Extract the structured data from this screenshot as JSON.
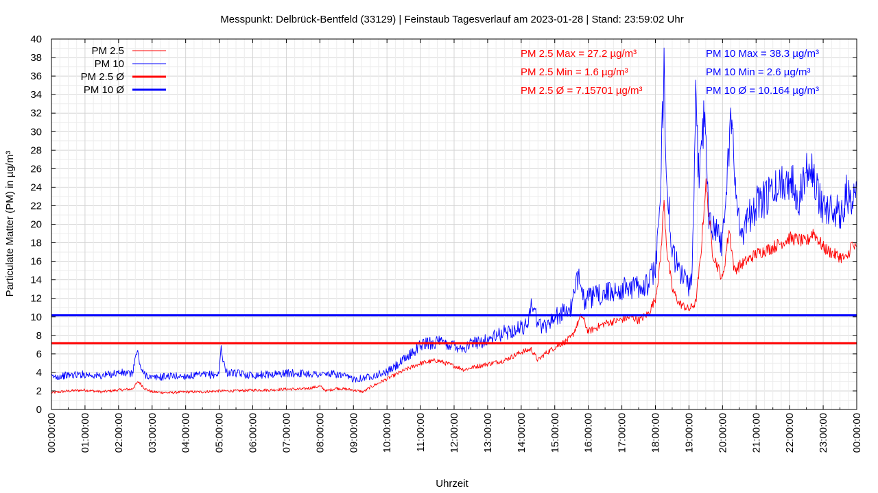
{
  "chart_data": {
    "type": "line",
    "title": "Messpunkt: Delbrück-Bentfeld (33129) | Feinstaub Tagesverlauf am 2023-01-28 | Stand: 23:59:02 Uhr",
    "xlabel": "Uhrzeit",
    "ylabel": "Particulate Matter (PM) in µg/m³",
    "ylim": [
      0,
      40
    ],
    "grid": true,
    "legend_position": "top-left",
    "x_ticks": [
      "00:00:00",
      "01:00:00",
      "02:00:00",
      "03:00:00",
      "04:00:00",
      "05:00:00",
      "06:00:00",
      "07:00:00",
      "08:00:00",
      "09:00:00",
      "10:00:00",
      "11:00:00",
      "12:00:00",
      "13:00:00",
      "14:00:00",
      "15:00:00",
      "16:00:00",
      "17:00:00",
      "18:00:00",
      "19:00:00",
      "20:00:00",
      "21:00:00",
      "22:00:00",
      "23:00:00",
      "00:00:00"
    ],
    "y_ticks": [
      0,
      2,
      4,
      6,
      8,
      10,
      12,
      14,
      16,
      18,
      20,
      22,
      24,
      26,
      28,
      30,
      32,
      34,
      36,
      38,
      40
    ],
    "series": [
      {
        "name": "PM 2.5",
        "color": "#ff0000",
        "style": "thin",
        "x_hours": [
          0,
          0.5,
          1,
          1.5,
          2,
          2.4,
          2.6,
          2.8,
          3,
          3.5,
          4,
          4.5,
          5,
          5.5,
          6,
          6.5,
          7,
          7.5,
          8,
          8.2,
          8.5,
          9,
          9.3,
          9.5,
          10,
          10.5,
          11,
          11.5,
          12,
          12.3,
          12.5,
          13,
          13.5,
          14,
          14.3,
          14.5,
          14.7,
          15,
          15.3,
          15.5,
          15.8,
          16,
          16.5,
          17,
          17.3,
          17.5,
          17.8,
          18,
          18.15,
          18.25,
          18.35,
          18.5,
          18.7,
          19,
          19.2,
          19.35,
          19.5,
          19.7,
          19.85,
          20,
          20.2,
          20.35,
          20.5,
          20.7,
          21,
          21.5,
          22,
          22.3,
          22.5,
          22.7,
          23,
          23.3,
          23.5,
          23.7,
          23.85,
          24
        ],
        "values": [
          1.8,
          2.0,
          2.1,
          1.9,
          2.1,
          2.2,
          3.0,
          2.2,
          1.9,
          1.8,
          1.9,
          1.9,
          2.0,
          2.0,
          2.1,
          2.1,
          2.2,
          2.2,
          2.5,
          2.0,
          2.3,
          2.1,
          1.9,
          2.4,
          3.3,
          4.2,
          5.0,
          5.3,
          4.7,
          4.3,
          4.5,
          4.9,
          5.3,
          6.2,
          6.5,
          5.3,
          6.0,
          6.7,
          7.3,
          7.8,
          10.2,
          8.4,
          9.3,
          9.7,
          10.0,
          9.6,
          10.4,
          12.0,
          16.0,
          22.5,
          17.0,
          13.0,
          11.5,
          10.8,
          11.5,
          16.5,
          24.5,
          17.0,
          15.5,
          14.0,
          19.5,
          15.0,
          15.5,
          16.0,
          16.8,
          17.5,
          18.5,
          18.3,
          18.0,
          19.2,
          17.5,
          16.8,
          16.5,
          16.2,
          17.9,
          17.2
        ]
      },
      {
        "name": "PM 10",
        "color": "#0000ff",
        "style": "thin",
        "x_hours": [
          0,
          0.5,
          1,
          1.5,
          2,
          2.4,
          2.55,
          2.7,
          3,
          3.5,
          4,
          4.5,
          5,
          5.05,
          5.2,
          5.5,
          6,
          6.5,
          7,
          7.5,
          8,
          8.5,
          9,
          9.3,
          9.5,
          10,
          10.5,
          11,
          11.5,
          11.8,
          12,
          12.3,
          12.5,
          13,
          13.5,
          14,
          14.2,
          14.3,
          14.5,
          14.7,
          15,
          15.3,
          15.5,
          15.75,
          15.9,
          16,
          16.5,
          17,
          17.3,
          17.5,
          17.8,
          18,
          18.15,
          18.25,
          18.35,
          18.5,
          18.7,
          19,
          19.1,
          19.2,
          19.3,
          19.45,
          19.6,
          19.8,
          20,
          20.25,
          20.4,
          20.6,
          20.8,
          21,
          21.5,
          21.8,
          22,
          22.3,
          22.6,
          22.8,
          23,
          23.3,
          23.5,
          23.7,
          23.85,
          24
        ],
        "values": [
          3.5,
          3.7,
          3.8,
          3.6,
          4.0,
          3.8,
          6.3,
          4.0,
          3.4,
          3.6,
          3.6,
          3.7,
          3.8,
          6.7,
          4.0,
          3.9,
          3.7,
          3.8,
          3.9,
          3.9,
          3.8,
          3.8,
          3.3,
          3.4,
          3.6,
          4.0,
          5.3,
          7.0,
          7.3,
          7.0,
          7.0,
          6.6,
          7.1,
          7.5,
          8.3,
          8.8,
          9.2,
          12.0,
          9.2,
          9.0,
          10.0,
          10.5,
          11.0,
          15.0,
          11.5,
          12.0,
          12.5,
          13.0,
          13.2,
          13.3,
          13.5,
          15.5,
          22.0,
          37.5,
          24.0,
          17.0,
          15.0,
          13.5,
          14.5,
          33.0,
          25.0,
          32.0,
          21.0,
          19.5,
          18.0,
          32.0,
          23.0,
          19.0,
          21.0,
          22.0,
          23.5,
          24.5,
          25.0,
          23.0,
          27.5,
          23.5,
          22.0,
          21.5,
          21.0,
          23.5,
          21.5,
          23.8
        ]
      },
      {
        "name": "PM 2.5 Ø",
        "color": "#ff0000",
        "style": "thick",
        "constant": 7.15701
      },
      {
        "name": "PM 10 Ø",
        "color": "#0000ff",
        "style": "thick",
        "constant": 10.164
      }
    ],
    "annotations": {
      "pm25_max": "PM 2.5 Max = 27.2 µg/m³",
      "pm25_min": "PM 2.5 Min = 1.6 µg/m³",
      "pm25_avg": "PM 2.5 Ø = 7.15701 µg/m³",
      "pm10_max": "PM 10 Max = 38.3 µg/m³",
      "pm10_min": "PM 10 Min = 2.6 µg/m³",
      "pm10_avg": "PM 10 Ø = 10.164 µg/m³"
    }
  }
}
